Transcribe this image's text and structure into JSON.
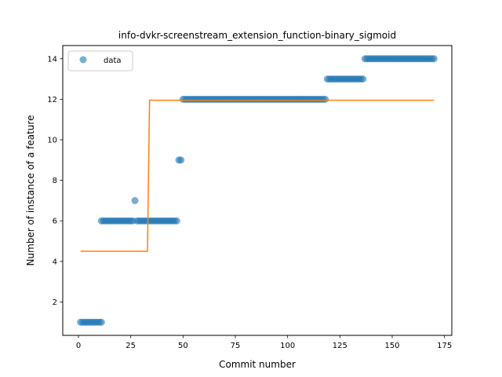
{
  "chart_data": {
    "type": "scatter",
    "title": "info-dvkr-screenstream_extension_function-binary_sigmoid",
    "xlabel": "Commit number",
    "ylabel": "Number of instance of a feature",
    "xlim": [
      -7.5,
      178.5
    ],
    "ylim": [
      0.35,
      14.65
    ],
    "xticks": [
      0,
      25,
      50,
      75,
      100,
      125,
      150,
      175
    ],
    "yticks": [
      2,
      4,
      6,
      8,
      10,
      12,
      14
    ],
    "grid": false,
    "legend": {
      "placement": "top-left",
      "entries": [
        "data"
      ]
    },
    "series": [
      {
        "name": "data",
        "kind": "points",
        "color": "#1f77b4",
        "segments": [
          {
            "x_start": 1,
            "x_end": 11,
            "y": 1
          },
          {
            "x_start": 11,
            "x_end": 26,
            "y": 6
          },
          {
            "x_start": 27,
            "x_end": 27,
            "y": 7
          },
          {
            "x_start": 28,
            "x_end": 47,
            "y": 6
          },
          {
            "x_start": 48,
            "x_end": 49,
            "y": 9
          },
          {
            "x_start": 50,
            "x_end": 118,
            "y": 12
          },
          {
            "x_start": 119,
            "x_end": 136,
            "y": 13
          },
          {
            "x_start": 137,
            "x_end": 170,
            "y": 14
          }
        ]
      },
      {
        "kind": "line",
        "color": "#ff7f0e",
        "points": [
          [
            1,
            4.5
          ],
          [
            33,
            4.5
          ],
          [
            34,
            11.95
          ],
          [
            170,
            11.95
          ]
        ]
      }
    ]
  }
}
